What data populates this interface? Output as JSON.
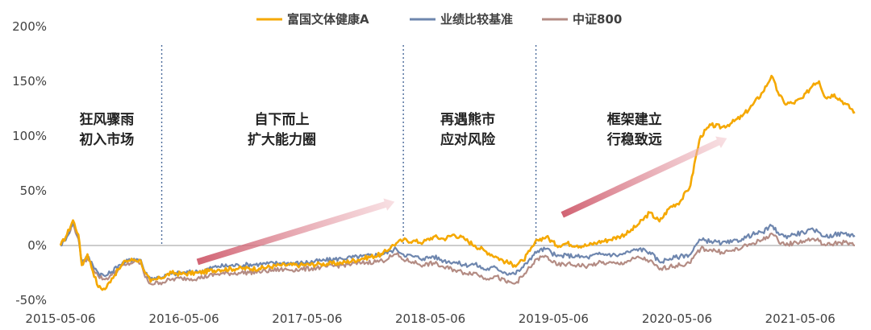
{
  "chart_data": {
    "type": "line",
    "legend_position": "top",
    "y_axis": {
      "min": -50,
      "max": 200,
      "unit": "%",
      "ticks": [
        -50,
        0,
        50,
        100,
        150,
        200
      ],
      "tick_labels": [
        "-50%",
        "0%",
        "50%",
        "100%",
        "150%",
        "200%"
      ]
    },
    "x_axis": {
      "start": "2015-05-06",
      "end": "2021-10-15",
      "tick_dates": [
        "2015-05-06",
        "2016-05-06",
        "2017-05-06",
        "2018-05-06",
        "2019-05-06",
        "2020-05-06",
        "2021-05-06"
      ],
      "tick_labels": [
        "2015-05-06",
        "2016-05-06",
        "2017-05-06",
        "2018-05-06",
        "2019-05-06",
        "2020-05-06",
        "2021-05-06"
      ]
    },
    "series": [
      {
        "name": "富国文体健康A",
        "color": "#F5A800",
        "points": [
          [
            "2015-05-06",
            0
          ],
          [
            "2015-05-25",
            10
          ],
          [
            "2015-06-12",
            23
          ],
          [
            "2015-06-28",
            10
          ],
          [
            "2015-07-08",
            -18
          ],
          [
            "2015-07-25",
            -8
          ],
          [
            "2015-08-26",
            -38
          ],
          [
            "2015-09-15",
            -40
          ],
          [
            "2015-10-05",
            -30
          ],
          [
            "2015-10-25",
            -22
          ],
          [
            "2015-11-15",
            -14
          ],
          [
            "2015-12-10",
            -13
          ],
          [
            "2015-12-30",
            -14
          ],
          [
            "2016-01-12",
            -25
          ],
          [
            "2016-01-28",
            -33
          ],
          [
            "2016-02-25",
            -30
          ],
          [
            "2016-03-30",
            -25
          ],
          [
            "2016-04-30",
            -26
          ],
          [
            "2016-06-15",
            -25
          ],
          [
            "2016-08-15",
            -22
          ],
          [
            "2016-10-15",
            -21
          ],
          [
            "2016-12-15",
            -21
          ],
          [
            "2017-02-15",
            -18
          ],
          [
            "2017-04-15",
            -18
          ],
          [
            "2017-06-15",
            -17
          ],
          [
            "2017-08-15",
            -16
          ],
          [
            "2017-10-15",
            -12
          ],
          [
            "2017-12-15",
            -8
          ],
          [
            "2018-01-10",
            -1
          ],
          [
            "2018-01-25",
            2
          ],
          [
            "2018-02-15",
            5
          ],
          [
            "2018-03-15",
            4
          ],
          [
            "2018-04-15",
            3
          ],
          [
            "2018-05-15",
            8
          ],
          [
            "2018-06-15",
            6
          ],
          [
            "2018-07-15",
            10
          ],
          [
            "2018-08-15",
            6
          ],
          [
            "2018-09-15",
            0
          ],
          [
            "2018-10-15",
            -5
          ],
          [
            "2018-11-15",
            -10
          ],
          [
            "2018-12-15",
            -15
          ],
          [
            "2019-01-10",
            -18
          ],
          [
            "2019-02-05",
            -14
          ],
          [
            "2019-02-25",
            -5
          ],
          [
            "2019-03-20",
            5
          ],
          [
            "2019-04-15",
            8
          ],
          [
            "2019-05-15",
            0
          ],
          [
            "2019-06-15",
            2
          ],
          [
            "2019-07-15",
            0
          ],
          [
            "2019-08-15",
            0
          ],
          [
            "2019-09-15",
            3
          ],
          [
            "2019-10-15",
            5
          ],
          [
            "2019-11-15",
            8
          ],
          [
            "2019-12-15",
            12
          ],
          [
            "2020-01-15",
            20
          ],
          [
            "2020-02-15",
            30
          ],
          [
            "2020-03-15",
            22
          ],
          [
            "2020-04-15",
            35
          ],
          [
            "2020-05-15",
            40
          ],
          [
            "2020-06-15",
            55
          ],
          [
            "2020-06-30",
            80
          ],
          [
            "2020-07-15",
            100
          ],
          [
            "2020-08-15",
            110
          ],
          [
            "2020-09-15",
            108
          ],
          [
            "2020-10-15",
            112
          ],
          [
            "2020-11-15",
            118
          ],
          [
            "2020-12-15",
            128
          ],
          [
            "2021-01-15",
            140
          ],
          [
            "2021-02-10",
            155
          ],
          [
            "2021-03-01",
            140
          ],
          [
            "2021-03-20",
            130
          ],
          [
            "2021-04-15",
            130
          ],
          [
            "2021-05-15",
            135
          ],
          [
            "2021-06-15",
            148
          ],
          [
            "2021-07-01",
            150
          ],
          [
            "2021-07-20",
            135
          ],
          [
            "2021-08-15",
            138
          ],
          [
            "2021-09-15",
            130
          ],
          [
            "2021-10-15",
            122
          ]
        ]
      },
      {
        "name": "业绩比较基准",
        "color": "#6E86AE",
        "points": [
          [
            "2015-05-06",
            0
          ],
          [
            "2015-05-25",
            8
          ],
          [
            "2015-06-12",
            21
          ],
          [
            "2015-06-28",
            8
          ],
          [
            "2015-07-08",
            -15
          ],
          [
            "2015-07-25",
            -10
          ],
          [
            "2015-08-26",
            -25
          ],
          [
            "2015-09-15",
            -28
          ],
          [
            "2015-10-05",
            -24
          ],
          [
            "2015-10-25",
            -18
          ],
          [
            "2015-11-15",
            -15
          ],
          [
            "2015-12-10",
            -12
          ],
          [
            "2015-12-30",
            -13
          ],
          [
            "2016-01-12",
            -25
          ],
          [
            "2016-01-28",
            -30
          ],
          [
            "2016-02-25",
            -29
          ],
          [
            "2016-03-30",
            -26
          ],
          [
            "2016-04-30",
            -25
          ],
          [
            "2016-06-15",
            -24
          ],
          [
            "2016-08-15",
            -19
          ],
          [
            "2016-10-15",
            -18
          ],
          [
            "2016-12-15",
            -17
          ],
          [
            "2017-02-15",
            -16
          ],
          [
            "2017-04-15",
            -16
          ],
          [
            "2017-06-15",
            -14
          ],
          [
            "2017-08-15",
            -12
          ],
          [
            "2017-10-15",
            -10
          ],
          [
            "2017-12-15",
            -8
          ],
          [
            "2018-01-10",
            -5
          ],
          [
            "2018-01-25",
            -3
          ],
          [
            "2018-02-15",
            -8
          ],
          [
            "2018-03-15",
            -10
          ],
          [
            "2018-04-15",
            -12
          ],
          [
            "2018-05-15",
            -10
          ],
          [
            "2018-06-15",
            -14
          ],
          [
            "2018-07-15",
            -15
          ],
          [
            "2018-08-15",
            -18
          ],
          [
            "2018-09-15",
            -17
          ],
          [
            "2018-10-15",
            -22
          ],
          [
            "2018-11-15",
            -20
          ],
          [
            "2018-12-15",
            -25
          ],
          [
            "2019-01-10",
            -26
          ],
          [
            "2019-02-05",
            -20
          ],
          [
            "2019-02-25",
            -12
          ],
          [
            "2019-03-20",
            -5
          ],
          [
            "2019-04-15",
            -3
          ],
          [
            "2019-05-15",
            -10
          ],
          [
            "2019-06-15",
            -9
          ],
          [
            "2019-07-15",
            -10
          ],
          [
            "2019-08-15",
            -11
          ],
          [
            "2019-09-15",
            -8
          ],
          [
            "2019-10-15",
            -8
          ],
          [
            "2019-11-15",
            -9
          ],
          [
            "2019-12-15",
            -6
          ],
          [
            "2020-01-15",
            -3
          ],
          [
            "2020-02-15",
            -6
          ],
          [
            "2020-03-15",
            -15
          ],
          [
            "2020-04-15",
            -12
          ],
          [
            "2020-05-15",
            -10
          ],
          [
            "2020-06-15",
            -8
          ],
          [
            "2020-06-30",
            0
          ],
          [
            "2020-07-15",
            5
          ],
          [
            "2020-08-15",
            4
          ],
          [
            "2020-09-15",
            2
          ],
          [
            "2020-10-15",
            3
          ],
          [
            "2020-11-15",
            6
          ],
          [
            "2020-12-15",
            10
          ],
          [
            "2021-01-15",
            12
          ],
          [
            "2021-02-10",
            18
          ],
          [
            "2021-03-01",
            12
          ],
          [
            "2021-03-20",
            8
          ],
          [
            "2021-04-15",
            10
          ],
          [
            "2021-05-15",
            12
          ],
          [
            "2021-06-15",
            14
          ],
          [
            "2021-07-01",
            12
          ],
          [
            "2021-07-20",
            8
          ],
          [
            "2021-08-15",
            10
          ],
          [
            "2021-09-15",
            11
          ],
          [
            "2021-10-15",
            9
          ]
        ]
      },
      {
        "name": "中证800",
        "color": "#B48C84",
        "points": [
          [
            "2015-05-06",
            0
          ],
          [
            "2015-05-25",
            8
          ],
          [
            "2015-06-12",
            20
          ],
          [
            "2015-06-28",
            6
          ],
          [
            "2015-07-08",
            -17
          ],
          [
            "2015-07-25",
            -12
          ],
          [
            "2015-08-26",
            -28
          ],
          [
            "2015-09-15",
            -31
          ],
          [
            "2015-10-05",
            -27
          ],
          [
            "2015-10-25",
            -21
          ],
          [
            "2015-11-15",
            -18
          ],
          [
            "2015-12-10",
            -15
          ],
          [
            "2015-12-30",
            -16
          ],
          [
            "2016-01-12",
            -29
          ],
          [
            "2016-01-28",
            -35
          ],
          [
            "2016-02-25",
            -34
          ],
          [
            "2016-03-30",
            -31
          ],
          [
            "2016-04-30",
            -30
          ],
          [
            "2016-06-15",
            -30
          ],
          [
            "2016-08-15",
            -26
          ],
          [
            "2016-10-15",
            -25
          ],
          [
            "2016-12-15",
            -24
          ],
          [
            "2017-02-15",
            -22
          ],
          [
            "2017-04-15",
            -22
          ],
          [
            "2017-06-15",
            -20
          ],
          [
            "2017-08-15",
            -18
          ],
          [
            "2017-10-15",
            -16
          ],
          [
            "2017-12-15",
            -14
          ],
          [
            "2018-01-10",
            -10
          ],
          [
            "2018-01-25",
            -8
          ],
          [
            "2018-02-15",
            -13
          ],
          [
            "2018-03-15",
            -15
          ],
          [
            "2018-04-15",
            -18
          ],
          [
            "2018-05-15",
            -16
          ],
          [
            "2018-06-15",
            -20
          ],
          [
            "2018-07-15",
            -22
          ],
          [
            "2018-08-15",
            -25
          ],
          [
            "2018-09-15",
            -25
          ],
          [
            "2018-10-15",
            -30
          ],
          [
            "2018-11-15",
            -28
          ],
          [
            "2018-12-15",
            -33
          ],
          [
            "2019-01-10",
            -35
          ],
          [
            "2019-02-05",
            -28
          ],
          [
            "2019-02-25",
            -20
          ],
          [
            "2019-03-20",
            -12
          ],
          [
            "2019-04-15",
            -10
          ],
          [
            "2019-05-15",
            -18
          ],
          [
            "2019-06-15",
            -17
          ],
          [
            "2019-07-15",
            -18
          ],
          [
            "2019-08-15",
            -19
          ],
          [
            "2019-09-15",
            -16
          ],
          [
            "2019-10-15",
            -16
          ],
          [
            "2019-11-15",
            -17
          ],
          [
            "2019-12-15",
            -14
          ],
          [
            "2020-01-15",
            -11
          ],
          [
            "2020-02-15",
            -14
          ],
          [
            "2020-03-15",
            -22
          ],
          [
            "2020-04-15",
            -19
          ],
          [
            "2020-05-15",
            -18
          ],
          [
            "2020-06-15",
            -16
          ],
          [
            "2020-06-30",
            -8
          ],
          [
            "2020-07-15",
            -3
          ],
          [
            "2020-08-15",
            -4
          ],
          [
            "2020-09-15",
            -6
          ],
          [
            "2020-10-15",
            -5
          ],
          [
            "2020-11-15",
            -2
          ],
          [
            "2020-12-15",
            2
          ],
          [
            "2021-01-15",
            5
          ],
          [
            "2021-02-10",
            11
          ],
          [
            "2021-03-01",
            5
          ],
          [
            "2021-03-20",
            1
          ],
          [
            "2021-04-15",
            2
          ],
          [
            "2021-05-15",
            4
          ],
          [
            "2021-06-15",
            6
          ],
          [
            "2021-07-01",
            4
          ],
          [
            "2021-07-20",
            0
          ],
          [
            "2021-08-15",
            2
          ],
          [
            "2021-09-15",
            3
          ],
          [
            "2021-10-15",
            0
          ]
        ]
      }
    ],
    "phase_dividers": [
      "2016-03-01",
      "2018-02-15",
      "2019-03-15"
    ],
    "annotations": [
      {
        "lines": [
          "狂风骤雨",
          "初入市场"
        ],
        "date": "2015-09-20",
        "y": 105
      },
      {
        "lines": [
          "自下而上",
          "扩大能力圈"
        ],
        "date": "2017-02-20",
        "y": 105
      },
      {
        "lines": [
          "再遇熊市",
          "应对风险"
        ],
        "date": "2018-08-25",
        "y": 105
      },
      {
        "lines": [
          "框架建立",
          "行稳致远"
        ],
        "date": "2020-01-01",
        "y": 105
      }
    ],
    "arrows": [
      {
        "from": [
          "2016-06-15",
          -15
        ],
        "to": [
          "2018-01-20",
          40
        ]
      },
      {
        "from": [
          "2019-06-01",
          28
        ],
        "to": [
          "2020-10-01",
          98
        ]
      }
    ]
  }
}
